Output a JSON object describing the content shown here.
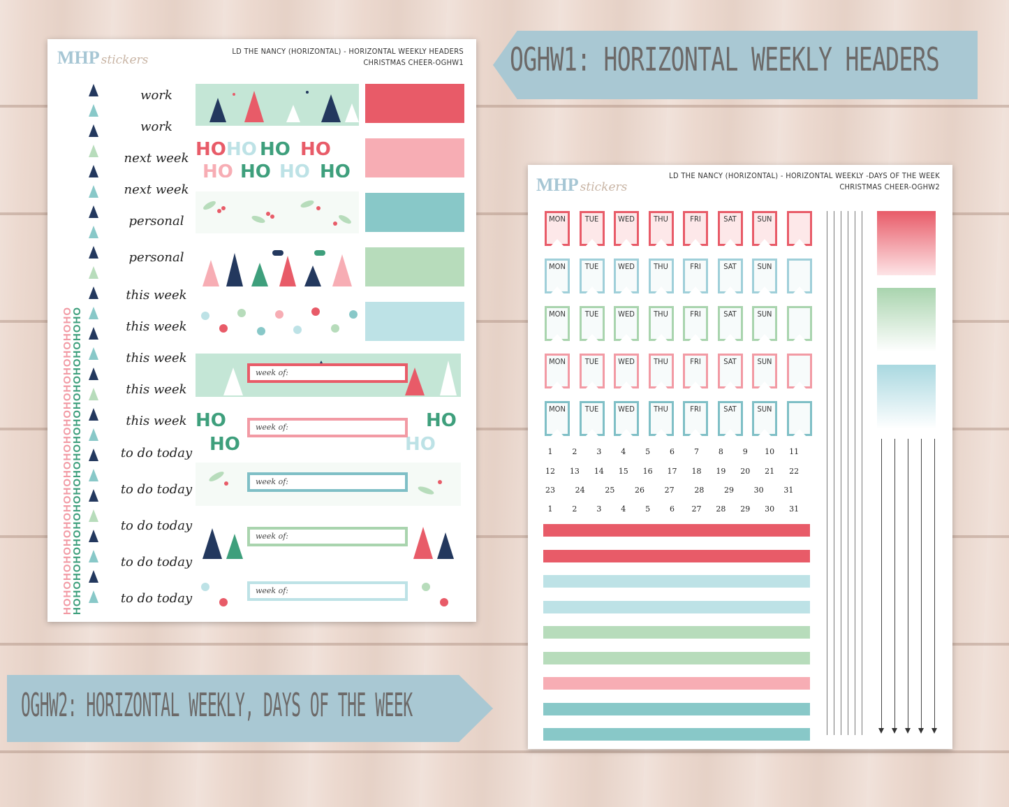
{
  "banners": {
    "top_label": "OGHW1: HORIZONTAL WEEKLY HEADERS",
    "bottom_label": "OGHW2: HORIZONTAL WEEKLY, DAYS OF THE WEEK"
  },
  "sheet1": {
    "logo_main": "MHP",
    "logo_sub": "stickers",
    "title_line1": "LD THE NANCY (HORIZONTAL) - HORIZONTAL WEEKLY HEADERS",
    "title_line2": "CHRISTMAS CHEER-OGHW1",
    "ho_text": "HOHOHOHOHOHOHOHOHOHOHOHOHOHOHOHOHOHO",
    "words": [
      "work",
      "work",
      "next week",
      "next week",
      "personal",
      "personal",
      "this week",
      "this week",
      "this week",
      "this week",
      "this week",
      "to do today",
      "to do today",
      "to do today",
      "to do today",
      "to do today"
    ],
    "week_of_label": "week of:",
    "colors": {
      "red": "#e85b68",
      "pink": "#f7adb4",
      "teal": "#88c8c8",
      "green": "#b7dcbb",
      "lightblue": "#bde2e6",
      "mint": "#c4e6d6",
      "navy": "#23385e"
    }
  },
  "sheet2": {
    "logo_main": "MHP",
    "logo_sub": "stickers",
    "title_line1": "LD THE NANCY (HORIZONTAL) - HORIZONTAL WEEKLY -DAYS OF THE WEEK",
    "title_line2": "CHRISTMAS CHEER-OGHW2",
    "days": [
      "MON",
      "TUE",
      "WED",
      "THU",
      "FRI",
      "SAT",
      "SUN",
      ""
    ],
    "flag_row_colors": [
      "#e85b68",
      "#9fcfd9",
      "#a9d4ae",
      "#f29aa4",
      "#7fbfc6"
    ],
    "number_rows": [
      [
        "1",
        "2",
        "3",
        "4",
        "5",
        "6",
        "7",
        "8",
        "9",
        "10",
        "11"
      ],
      [
        "12",
        "13",
        "14",
        "15",
        "16",
        "17",
        "18",
        "19",
        "20",
        "21",
        "22"
      ],
      [
        "23",
        "24",
        "25",
        "26",
        "27",
        "28",
        "29",
        "30",
        "31"
      ],
      [
        "1",
        "2",
        "3",
        "4",
        "5",
        "6",
        "27",
        "28",
        "29",
        "30",
        "31"
      ]
    ],
    "bar_colors": [
      "#e85b68",
      "#e85b68",
      "#bde2e6",
      "#bde2e6",
      "#b7dcbb",
      "#b7dcbb",
      "#f7adb4",
      "#88c8c8",
      "#88c8c8"
    ],
    "gradients": [
      [
        "#e85b68",
        "#fde4e6"
      ],
      [
        "#a9d4ae",
        "#ffffff"
      ],
      [
        "#a9d8e0",
        "#ffffff"
      ]
    ]
  }
}
